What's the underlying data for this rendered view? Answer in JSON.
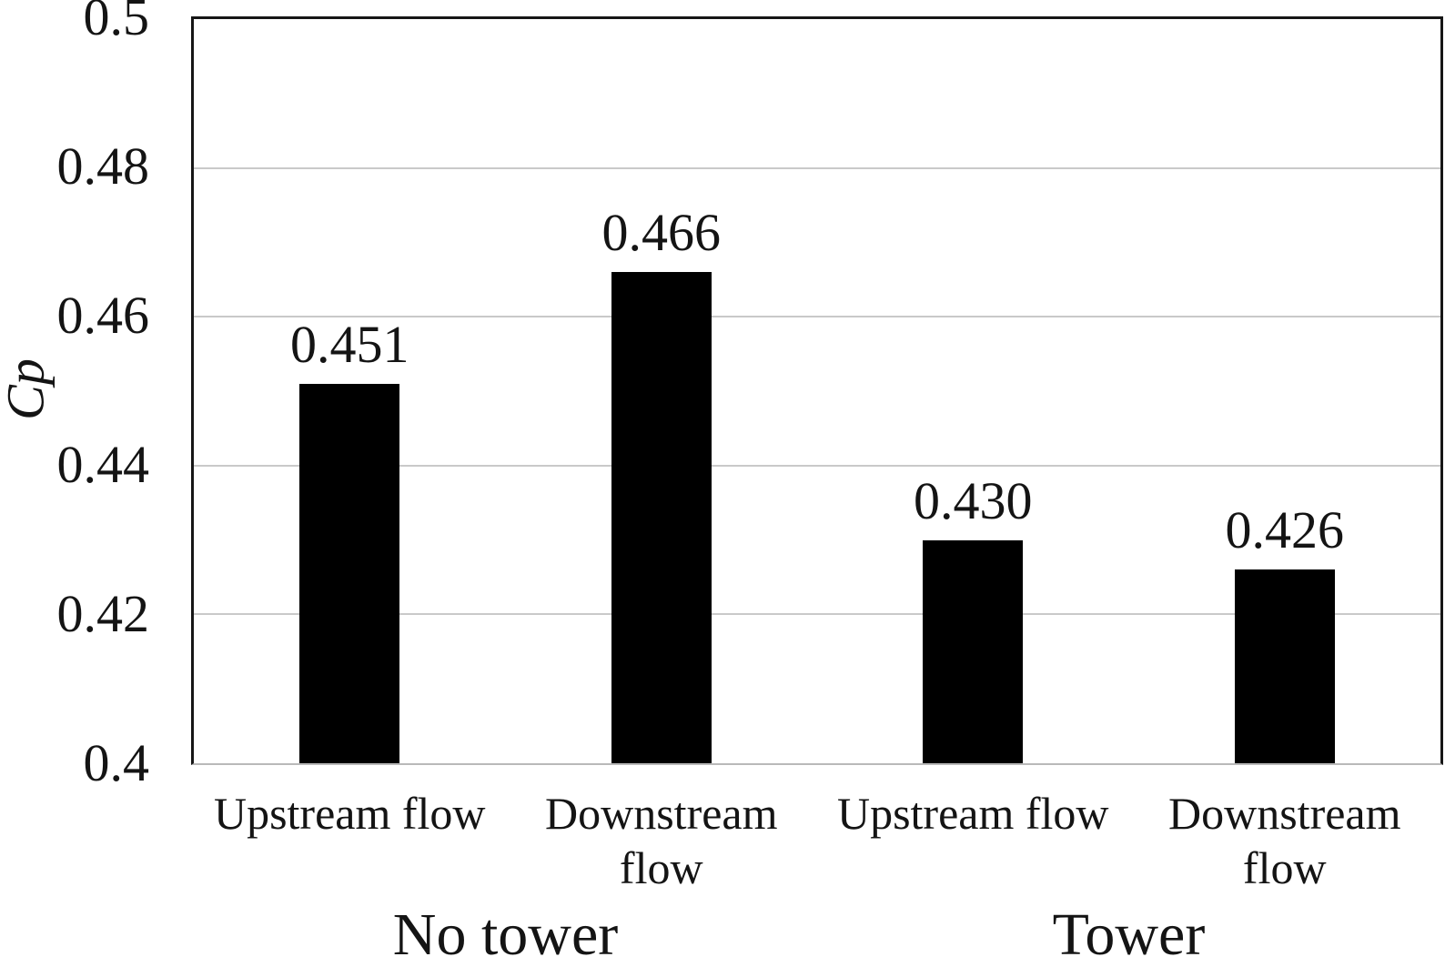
{
  "figure": {
    "background": "#ffffff",
    "text_color": "#141414",
    "axis_border_color": "#161616",
    "gridline_color": "#c9c9c9",
    "baseline_color": "#b9b9b9"
  },
  "chart_data": {
    "type": "bar",
    "title": "",
    "xlabel": "",
    "ylabel": "Cp",
    "ylim": [
      0.4,
      0.5
    ],
    "yticks": [
      "0.4",
      "0.42",
      "0.44",
      "0.46",
      "0.48",
      "0.5"
    ],
    "grid": "horizontal",
    "legend": "none",
    "bar_color": "#000000",
    "categories": [
      "Upstream flow",
      "Downstream flow",
      "Upstream flow",
      "Downstream flow"
    ],
    "values": [
      0.451,
      0.466,
      0.43,
      0.426
    ],
    "value_labels": [
      "0.451",
      "0.466",
      "0.430",
      "0.426"
    ],
    "groups": [
      {
        "label": "No tower",
        "span": [
          0,
          1
        ]
      },
      {
        "label": "Tower",
        "span": [
          2,
          3
        ]
      }
    ]
  }
}
